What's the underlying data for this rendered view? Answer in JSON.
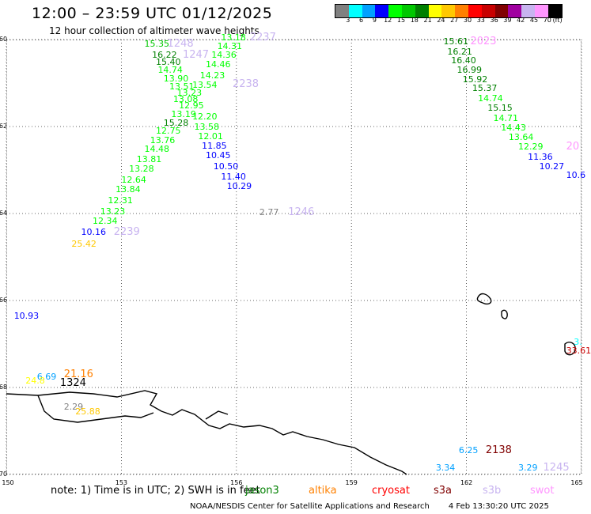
{
  "header": {
    "title": "12:00 – 23:59 UTC 01/12/2025",
    "subtitle": "12 hour collection of altimeter wave heights"
  },
  "legend": {
    "colors": [
      "#808080",
      "#00ffff",
      "#00a0ff",
      "#0000ff",
      "#00ff00",
      "#00c800",
      "#008000",
      "#ffff00",
      "#ffc800",
      "#ff8000",
      "#ff0000",
      "#c80000",
      "#800000",
      "#a000a0",
      "#c8b4f0",
      "#ff96ff",
      "#000000"
    ],
    "ticks": [
      "3",
      "6",
      "9",
      "12",
      "15",
      "18",
      "21",
      "24",
      "27",
      "30",
      "33",
      "36",
      "39",
      "42",
      "45",
      "70",
      "(ft)"
    ]
  },
  "axes": {
    "lat_labels": [
      "-60",
      "-62",
      "-64",
      "-66",
      "-68",
      "-70"
    ],
    "lon_labels": [
      "150",
      "153",
      "156",
      "159",
      "162",
      "165"
    ]
  },
  "map": {
    "lon_range": [
      150,
      165
    ],
    "lat_range": [
      -60,
      -70
    ],
    "labels": [
      {
        "t": "15.35",
        "c": "#00c800",
        "lon": 153.6,
        "lat": -60.0
      },
      {
        "t": "1248",
        "c": "#c8b4f0",
        "lon": 154.2,
        "lat": -60.0,
        "big": true
      },
      {
        "t": "16.22",
        "c": "#008000",
        "lon": 153.8,
        "lat": -60.25
      },
      {
        "t": "1247",
        "c": "#c8b4f0",
        "lon": 154.6,
        "lat": -60.25,
        "big": true
      },
      {
        "t": "15.40",
        "c": "#008000",
        "lon": 153.9,
        "lat": -60.42
      },
      {
        "t": "14.74",
        "c": "#00ff00",
        "lon": 153.95,
        "lat": -60.6
      },
      {
        "t": "13.90",
        "c": "#00ff00",
        "lon": 154.1,
        "lat": -60.8
      },
      {
        "t": "13.51",
        "c": "#00ff00",
        "lon": 154.25,
        "lat": -60.98
      },
      {
        "t": "13.23",
        "c": "#00ff00",
        "lon": 154.45,
        "lat": -61.12
      },
      {
        "t": "13.08",
        "c": "#00ff00",
        "lon": 154.35,
        "lat": -61.28
      },
      {
        "t": "12.95",
        "c": "#00ff00",
        "lon": 154.5,
        "lat": -61.42
      },
      {
        "t": "13.19",
        "c": "#00ff00",
        "lon": 154.3,
        "lat": -61.62
      },
      {
        "t": "15.28",
        "c": "#008000",
        "lon": 154.1,
        "lat": -61.82
      },
      {
        "t": "12.75",
        "c": "#00ff00",
        "lon": 153.9,
        "lat": -62.0
      },
      {
        "t": "13.76",
        "c": "#00ff00",
        "lon": 153.75,
        "lat": -62.22
      },
      {
        "t": "14.48",
        "c": "#00ff00",
        "lon": 153.6,
        "lat": -62.42
      },
      {
        "t": "13.81",
        "c": "#00ff00",
        "lon": 153.4,
        "lat": -62.65
      },
      {
        "t": "13.28",
        "c": "#00ff00",
        "lon": 153.2,
        "lat": -62.88
      },
      {
        "t": "12.64",
        "c": "#00ff00",
        "lon": 153.0,
        "lat": -63.12
      },
      {
        "t": "13.84",
        "c": "#00ff00",
        "lon": 152.85,
        "lat": -63.35
      },
      {
        "t": "12.31",
        "c": "#00ff00",
        "lon": 152.65,
        "lat": -63.6
      },
      {
        "t": "13.23",
        "c": "#00ff00",
        "lon": 152.45,
        "lat": -63.85
      },
      {
        "t": "12.34",
        "c": "#00ff00",
        "lon": 152.25,
        "lat": -64.08
      },
      {
        "t": "10.16",
        "c": "#0000ff",
        "lon": 151.95,
        "lat": -64.32
      },
      {
        "t": "2239",
        "c": "#c8b4f0",
        "lon": 152.8,
        "lat": -64.32,
        "big": true
      },
      {
        "t": "25.42",
        "c": "#ffc800",
        "lon": 151.7,
        "lat": -64.6
      },
      {
        "t": "13.18",
        "c": "#00ff00",
        "lon": 155.6,
        "lat": -59.85
      },
      {
        "t": "2237",
        "c": "#c8b4f0",
        "lon": 156.35,
        "lat": -59.85,
        "big": true
      },
      {
        "t": "14.31",
        "c": "#00ff00",
        "lon": 155.5,
        "lat": -60.05
      },
      {
        "t": "14.36",
        "c": "#00ff00",
        "lon": 155.35,
        "lat": -60.25
      },
      {
        "t": "14.46",
        "c": "#00ff00",
        "lon": 155.2,
        "lat": -60.48
      },
      {
        "t": "14.23",
        "c": "#00ff00",
        "lon": 155.05,
        "lat": -60.72
      },
      {
        "t": "13.54",
        "c": "#00ff00",
        "lon": 154.85,
        "lat": -60.95
      },
      {
        "t": "2238",
        "c": "#c8b4f0",
        "lon": 155.9,
        "lat": -60.92,
        "big": true
      },
      {
        "t": "12.20",
        "c": "#00ff00",
        "lon": 154.85,
        "lat": -61.68
      },
      {
        "t": "13.58",
        "c": "#00ff00",
        "lon": 154.9,
        "lat": -61.9
      },
      {
        "t": "12.01",
        "c": "#00ff00",
        "lon": 155.0,
        "lat": -62.12
      },
      {
        "t": "11.85",
        "c": "#0000ff",
        "lon": 155.1,
        "lat": -62.35
      },
      {
        "t": "10.45",
        "c": "#0000ff",
        "lon": 155.2,
        "lat": -62.57
      },
      {
        "t": "10.50",
        "c": "#0000ff",
        "lon": 155.4,
        "lat": -62.82
      },
      {
        "t": "11.40",
        "c": "#0000ff",
        "lon": 155.6,
        "lat": -63.05
      },
      {
        "t": "10.29",
        "c": "#0000ff",
        "lon": 155.75,
        "lat": -63.27
      },
      {
        "t": "2.77",
        "c": "#808080",
        "lon": 156.6,
        "lat": -63.88
      },
      {
        "t": "1246",
        "c": "#c8b4f0",
        "lon": 157.35,
        "lat": -63.88,
        "big": true
      },
      {
        "t": "15.61",
        "c": "#008000",
        "lon": 161.4,
        "lat": -59.95
      },
      {
        "t": "2023",
        "c": "#ff96ff",
        "lon": 162.1,
        "lat": -59.95,
        "big": true
      },
      {
        "t": "16.21",
        "c": "#008000",
        "lon": 161.5,
        "lat": -60.18
      },
      {
        "t": "16.40",
        "c": "#008000",
        "lon": 161.6,
        "lat": -60.38
      },
      {
        "t": "16.99",
        "c": "#008000",
        "lon": 161.75,
        "lat": -60.6
      },
      {
        "t": "15.92",
        "c": "#008000",
        "lon": 161.9,
        "lat": -60.82
      },
      {
        "t": "15.37",
        "c": "#008000",
        "lon": 162.15,
        "lat": -61.02
      },
      {
        "t": "14.74",
        "c": "#00ff00",
        "lon": 162.3,
        "lat": -61.25
      },
      {
        "t": "15.15",
        "c": "#008000",
        "lon": 162.55,
        "lat": -61.48
      },
      {
        "t": "14.71",
        "c": "#00ff00",
        "lon": 162.7,
        "lat": -61.7
      },
      {
        "t": "14.43",
        "c": "#00ff00",
        "lon": 162.9,
        "lat": -61.92
      },
      {
        "t": "13.64",
        "c": "#00ff00",
        "lon": 163.1,
        "lat": -62.15
      },
      {
        "t": "12.29",
        "c": "#00ff00",
        "lon": 163.35,
        "lat": -62.37
      },
      {
        "t": "20",
        "c": "#ff96ff",
        "lon": 164.6,
        "lat": -62.37,
        "big": true
      },
      {
        "t": "11.36",
        "c": "#0000ff",
        "lon": 163.6,
        "lat": -62.6
      },
      {
        "t": "10.27",
        "c": "#0000ff",
        "lon": 163.9,
        "lat": -62.82
      },
      {
        "t": "10.6",
        "c": "#0000ff",
        "lon": 164.6,
        "lat": -63.02
      },
      {
        "t": "10.93",
        "c": "#0000ff",
        "lon": 150.2,
        "lat": -66.25
      },
      {
        "t": "6.69",
        "c": "#00a0ff",
        "lon": 150.8,
        "lat": -67.65
      },
      {
        "t": "21.16",
        "c": "#ff8000",
        "lon": 151.5,
        "lat": -67.6,
        "big": true
      },
      {
        "t": "24.8",
        "c": "#ffff00",
        "lon": 150.5,
        "lat": -67.75
      },
      {
        "t": "1324",
        "c": "#000000",
        "lon": 151.4,
        "lat": -67.8,
        "big": true
      },
      {
        "t": "2.29",
        "c": "#808080",
        "lon": 151.5,
        "lat": -68.35
      },
      {
        "t": "25.88",
        "c": "#ffc800",
        "lon": 151.8,
        "lat": -68.45
      },
      {
        "t": "3.",
        "c": "#00ffff",
        "lon": 164.8,
        "lat": -66.85
      },
      {
        "t": "33.61",
        "c": "#c80000",
        "lon": 164.6,
        "lat": -67.05
      },
      {
        "t": "6.25",
        "c": "#00a0ff",
        "lon": 161.8,
        "lat": -69.35
      },
      {
        "t": "2138",
        "c": "#800000",
        "lon": 162.5,
        "lat": -69.35,
        "big": true
      },
      {
        "t": "3.34",
        "c": "#00a0ff",
        "lon": 161.2,
        "lat": -69.75
      },
      {
        "t": "3.29",
        "c": "#00a0ff",
        "lon": 163.35,
        "lat": -69.75
      },
      {
        "t": "1245",
        "c": "#c8b4f0",
        "lon": 164.0,
        "lat": -69.75,
        "big": true
      }
    ]
  },
  "footer": {
    "note": "note: 1) Time is in UTC; 2) SWH is in feet",
    "satellites": [
      {
        "name": "jason3",
        "color": "#008000"
      },
      {
        "name": "altika",
        "color": "#ff8000"
      },
      {
        "name": "cryosat",
        "color": "#ff0000"
      },
      {
        "name": "s3a",
        "color": "#800000"
      },
      {
        "name": "s3b",
        "color": "#c8b4f0"
      },
      {
        "name": "swot",
        "color": "#ff96ff"
      }
    ],
    "credit": "NOAA/NESDIS Center for Satellite Applications and Research",
    "generated": "4 Feb 13:30:20 UTC 2025"
  }
}
